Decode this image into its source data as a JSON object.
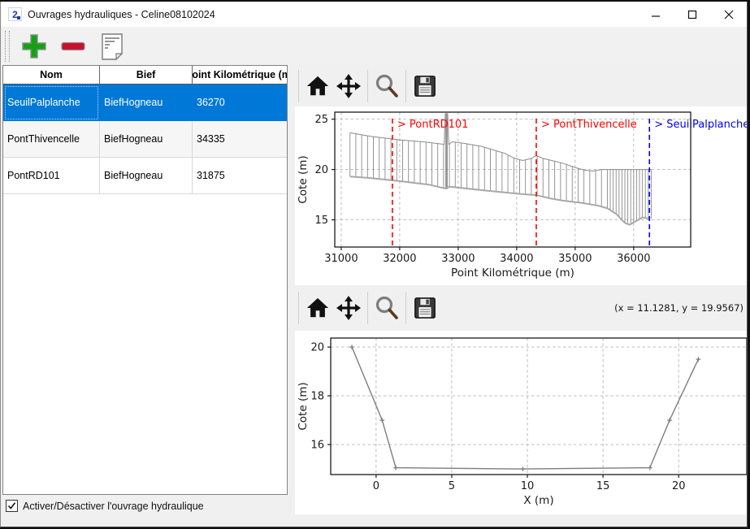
{
  "window": {
    "title": "Ouvrages hydrauliques - Celine08102024",
    "app_icon_glyph": "2"
  },
  "toolbar": {
    "add_label": "add-structure",
    "remove_label": "remove-structure",
    "notes_label": "edit-notes"
  },
  "table": {
    "columns": [
      "Nom",
      "Bief",
      "Point Kilométrique (m)"
    ],
    "rows": [
      {
        "nom": "SeuilPalplanche",
        "bief": "BiefHogneau",
        "pk": "36270"
      },
      {
        "nom": "PontThivencelle",
        "bief": "BiefHogneau",
        "pk": "34335"
      },
      {
        "nom": "PontRD101",
        "bief": "BiefHogneau",
        "pk": "31875"
      }
    ],
    "selected_row": 0,
    "selection_color": "#0078d7"
  },
  "checkbox": {
    "label": "Activer/Désactiver l'ouvrage hydraulique",
    "checked": true
  },
  "plots": {
    "coords_text": "(x = 11.1281,  y = 19.9567)"
  },
  "colors": {
    "annotation_red": "#ff0000",
    "annotation_blue": "#0000ee",
    "profile_gray": "#8a8a8a",
    "bed_gray": "#a8a8a8",
    "grid_gray": "#b5b5b5"
  },
  "chart_data": [
    {
      "type": "line",
      "name": "profil-en-long",
      "xlabel": "Point Kilométrique (m)",
      "ylabel": "Cote (m)",
      "xlim": [
        30890,
        36975
      ],
      "ylim": [
        12.3,
        25.7
      ],
      "xticks": [
        31000,
        32000,
        33000,
        34000,
        35000,
        36000
      ],
      "yticks": [
        15,
        20,
        25
      ],
      "grid": true,
      "series": [
        {
          "name": "crete_de_berge",
          "color": "#8a8a8a",
          "points": [
            [
              31150,
              23.65
            ],
            [
              31500,
              23.3
            ],
            [
              32000,
              22.95
            ],
            [
              32400,
              22.75
            ],
            [
              32760,
              22.5
            ],
            [
              32780,
              25.55
            ],
            [
              32820,
              25.55
            ],
            [
              32840,
              22.5
            ],
            [
              32900,
              22.75
            ],
            [
              33100,
              22.6
            ],
            [
              33400,
              22.3
            ],
            [
              33600,
              21.95
            ],
            [
              33800,
              21.6
            ],
            [
              33950,
              21.15
            ],
            [
              34100,
              20.9
            ],
            [
              34250,
              21.1
            ],
            [
              34335,
              21.4
            ],
            [
              34450,
              21.1
            ],
            [
              34600,
              20.9
            ],
            [
              34800,
              20.6
            ],
            [
              35000,
              20.2
            ],
            [
              35150,
              19.95
            ],
            [
              35300,
              19.85
            ],
            [
              35450,
              20.0
            ],
            [
              36300,
              20.0
            ]
          ]
        },
        {
          "name": "fond_du_lit",
          "color": "#a8a8a8",
          "points": [
            [
              31150,
              19.3
            ],
            [
              31500,
              19.15
            ],
            [
              32000,
              18.85
            ],
            [
              32500,
              18.5
            ],
            [
              32750,
              18.15
            ],
            [
              32800,
              18.1
            ],
            [
              32850,
              18.3
            ],
            [
              33400,
              17.95
            ],
            [
              34000,
              17.6
            ],
            [
              34335,
              17.45
            ],
            [
              34600,
              17.1
            ],
            [
              34800,
              16.9
            ],
            [
              35100,
              16.7
            ],
            [
              35400,
              16.4
            ],
            [
              35550,
              16.15
            ],
            [
              35700,
              15.6
            ],
            [
              35850,
              14.7
            ],
            [
              35930,
              14.5
            ],
            [
              36050,
              14.9
            ],
            [
              36150,
              15.25
            ],
            [
              36270,
              15.1
            ]
          ]
        }
      ],
      "comb": {
        "start": 31150,
        "end": 36300,
        "step": 100,
        "fine_from": 35500,
        "fine_step": 50,
        "extra": [
          32785,
          32800,
          32815
        ]
      },
      "annotations": [
        {
          "label": "> PontRD101",
          "x": 31875,
          "color": "#ff0000"
        },
        {
          "label": "> PontThivencelle",
          "x": 34335,
          "color": "#ff0000"
        },
        {
          "label": "> SeuilPalplanche",
          "x": 36270,
          "color": "#0000ee"
        }
      ]
    },
    {
      "type": "line",
      "name": "section-transversale",
      "xlabel": "X (m)",
      "ylabel": "Cote (m)",
      "xlim": [
        -3.0,
        24.5
      ],
      "ylim": [
        14.77,
        20.37
      ],
      "xticks": [
        0,
        5,
        10,
        15,
        20
      ],
      "yticks": [
        16,
        18,
        20
      ],
      "grid": true,
      "series": [
        {
          "name": "section",
          "color": "#7d7d7d",
          "marker": "+",
          "points": [
            [
              -1.6,
              20.0
            ],
            [
              0.4,
              17.0
            ],
            [
              1.3,
              15.05
            ],
            [
              9.7,
              15.0
            ],
            [
              18.1,
              15.05
            ],
            [
              19.4,
              17.0
            ],
            [
              21.3,
              19.5
            ]
          ]
        }
      ],
      "annotations": []
    }
  ]
}
